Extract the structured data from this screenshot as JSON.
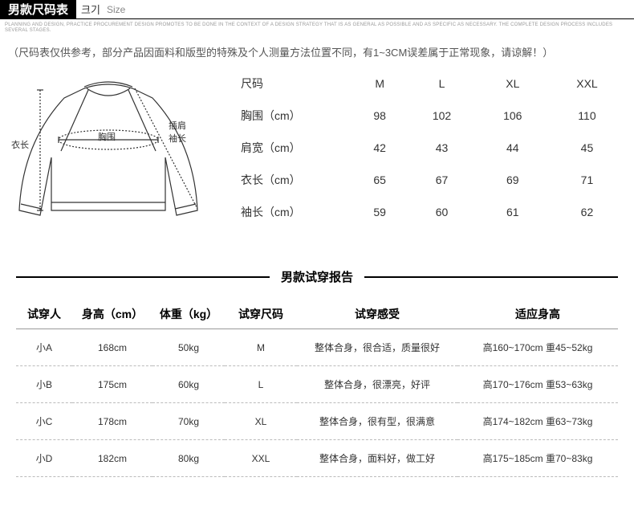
{
  "header": {
    "title": "男款尺码表",
    "sub": "크기",
    "sub2": "Size"
  },
  "fineprint": "PLANNING AND DESIGN, PRACTICE PROCUREMENT DESIGN PROMOTES TO BE DONE IN THE CONTEXT OF A DESIGN STRATEGY THAT IS AS GENERAL AS POSSIBLE AND AS SPECIFIC AS NECESSARY. THE COMPLETE DESIGN PROCESS INCLUDES SEVERAL STAGES.",
  "disclaimer": "（尺码表仅供参考，部分产品因面料和版型的特殊及个人测量方法位置不同，有1~3CM误差属于正常现象，请谅解！）",
  "diagram_labels": {
    "length": "衣长",
    "chest": "胸围",
    "sleeve": "插肩\n袖长"
  },
  "size_table": {
    "header": [
      "尺码",
      "M",
      "L",
      "XL",
      "XXL"
    ],
    "rows": [
      {
        "label": "胸围（cm）",
        "vals": [
          "98",
          "102",
          "106",
          "110"
        ]
      },
      {
        "label": "肩宽（cm）",
        "vals": [
          "42",
          "43",
          "44",
          "45"
        ]
      },
      {
        "label": "衣长（cm）",
        "vals": [
          "65",
          "67",
          "69",
          "71"
        ]
      },
      {
        "label": "袖长（cm）",
        "vals": [
          "59",
          "60",
          "61",
          "62"
        ]
      }
    ]
  },
  "fit_section_title": "男款试穿报告",
  "fit_table": {
    "header": [
      "试穿人",
      "身高（cm）",
      "体重（kg）",
      "试穿尺码",
      "试穿感受",
      "适应身高"
    ],
    "rows": [
      [
        "小A",
        "168cm",
        "50kg",
        "M",
        "整体合身，很合适，质量很好",
        "高160~170cm 重45~52kg"
      ],
      [
        "小B",
        "175cm",
        "60kg",
        "L",
        "整体合身，很漂亮，好评",
        "高170~176cm 重53~63kg"
      ],
      [
        "小C",
        "178cm",
        "70kg",
        "XL",
        "整体合身，很有型，很满意",
        "高174~182cm 重63~73kg"
      ],
      [
        "小D",
        "182cm",
        "80kg",
        "XXL",
        "整体合身，面料好，做工好",
        "高175~185cm 重70~83kg"
      ]
    ]
  },
  "colors": {
    "header_bg": "#000000",
    "header_fg": "#ffffff",
    "text": "#333333",
    "muted": "#888888",
    "divider": "#000000",
    "row_border": "#bbbbbb"
  }
}
